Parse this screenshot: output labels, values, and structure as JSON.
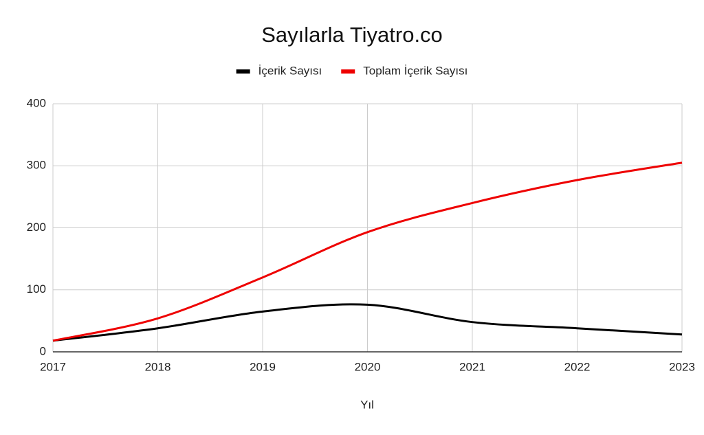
{
  "chart_data": {
    "type": "line",
    "title": "Sayılarla Tiyatro.co",
    "x_label": "Yıl",
    "x": [
      2017,
      2018,
      2019,
      2020,
      2021,
      2022,
      2023
    ],
    "series": [
      {
        "name": "İçerik Sayısı",
        "color": "#000000",
        "values": [
          18,
          38,
          65,
          76,
          48,
          38,
          28
        ]
      },
      {
        "name": "Toplam İçerik Sayısı",
        "color": "#ee0000",
        "values": [
          18,
          54,
          120,
          193,
          240,
          277,
          305
        ]
      }
    ],
    "xlim": [
      2017,
      2023
    ],
    "xticks": [
      2017,
      2018,
      2019,
      2020,
      2021,
      2022,
      2023
    ],
    "ylim": [
      0,
      400
    ],
    "yticks": [
      0,
      100,
      200,
      300,
      400
    ],
    "grid": true,
    "smooth": true,
    "legend": "top"
  }
}
